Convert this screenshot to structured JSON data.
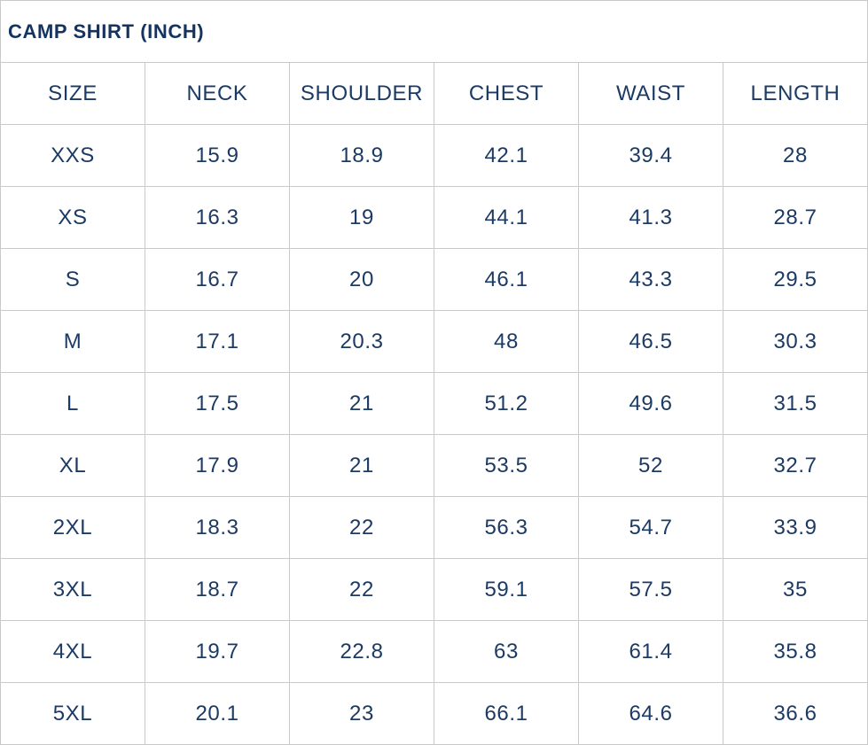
{
  "title": "CAMP SHIRT (INCH)",
  "colors": {
    "text": "#1b3a64",
    "title_text": "#14335f",
    "grid_border": "#c9c9c9",
    "background": "#ffffff"
  },
  "chart_data": {
    "type": "table",
    "title": "CAMP SHIRT (INCH)",
    "columns": [
      "SIZE",
      "NECK",
      "SHOULDER",
      "CHEST",
      "WAIST",
      "LENGTH"
    ],
    "rows": [
      [
        "XXS",
        "15.9",
        "18.9",
        "42.1",
        "39.4",
        "28"
      ],
      [
        "XS",
        "16.3",
        "19",
        "44.1",
        "41.3",
        "28.7"
      ],
      [
        "S",
        "16.7",
        "20",
        "46.1",
        "43.3",
        "29.5"
      ],
      [
        "M",
        "17.1",
        "20.3",
        "48",
        "46.5",
        "30.3"
      ],
      [
        "L",
        "17.5",
        "21",
        "51.2",
        "49.6",
        "31.5"
      ],
      [
        "XL",
        "17.9",
        "21",
        "53.5",
        "52",
        "32.7"
      ],
      [
        "2XL",
        "18.3",
        "22",
        "56.3",
        "54.7",
        "33.9"
      ],
      [
        "3XL",
        "18.7",
        "22",
        "59.1",
        "57.5",
        "35"
      ],
      [
        "4XL",
        "19.7",
        "22.8",
        "63",
        "61.4",
        "35.8"
      ],
      [
        "5XL",
        "20.1",
        "23",
        "66.1",
        "64.6",
        "36.6"
      ]
    ]
  }
}
